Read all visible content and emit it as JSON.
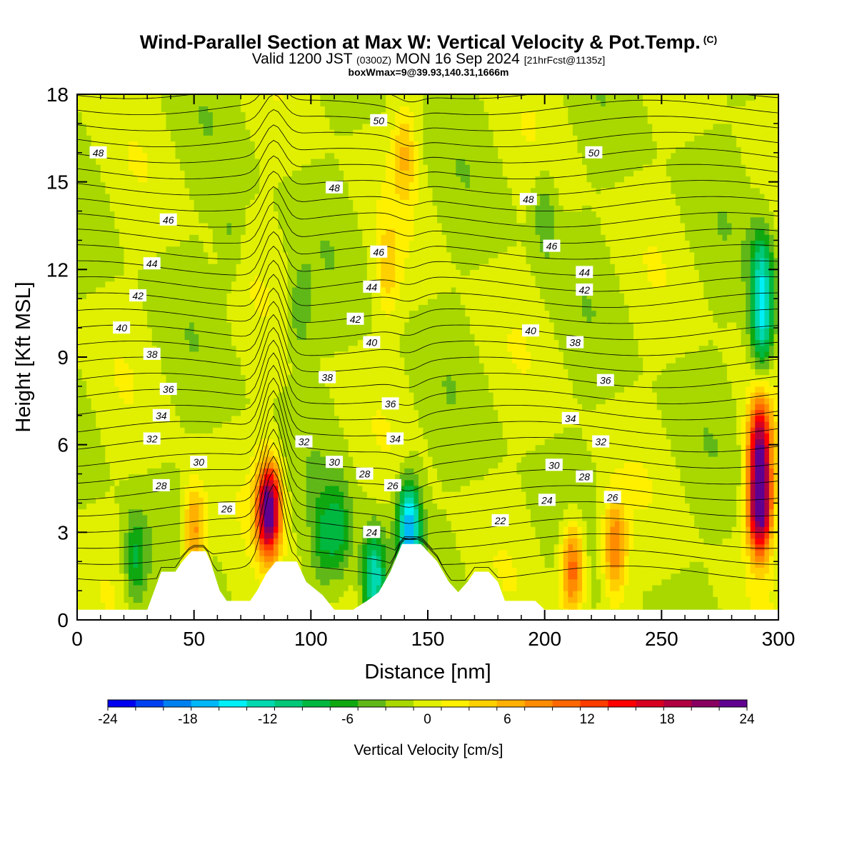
{
  "header": {
    "title": "Wind-Parallel Section at Max W: Vertical Velocity & Pot.Temp.",
    "title_tag": "(C)",
    "subtitle_main": "Valid 1200 JST",
    "subtitle_z": "(0300Z)",
    "subtitle_date": "MON 16 Sep 2024",
    "subtitle_fcst": "[21hrFcst@1135z]",
    "subtitle2": "boxWmax=9@39.93,140.31,1666m"
  },
  "chart_data": {
    "type": "heatmap",
    "xlabel": "Distance [nm]",
    "ylabel": "Height [Kft MSL]",
    "xlim": [
      0,
      300
    ],
    "ylim": [
      0,
      18
    ],
    "x_ticks": [
      0,
      50,
      100,
      150,
      200,
      250,
      300
    ],
    "y_ticks": [
      0,
      3,
      6,
      9,
      12,
      15,
      18
    ],
    "colorbar": {
      "label": "Vertical Velocity [cm/s]",
      "min": -24,
      "max": 24,
      "step": 2,
      "tick_labels": [
        -24,
        -18,
        -12,
        -6,
        0,
        6,
        12,
        18,
        24
      ],
      "colors": [
        "#0000f0",
        "#0040f0",
        "#0080f0",
        "#00b8f8",
        "#00f0f8",
        "#00d8b0",
        "#00c878",
        "#00b840",
        "#10a810",
        "#60b818",
        "#a8d800",
        "#e0f000",
        "#fff000",
        "#ffd000",
        "#ffb000",
        "#ff8c00",
        "#ff6800",
        "#ff3c00",
        "#ff0000",
        "#d80020",
        "#b00040",
        "#880060",
        "#600090"
      ]
    },
    "background_value": -1,
    "w_features": [
      {
        "x": 82,
        "z": 3.8,
        "value": 24
      },
      {
        "x": 292,
        "z": 3.8,
        "value": 24
      },
      {
        "x": 292,
        "z": 6.0,
        "value": 18
      },
      {
        "x": 293,
        "z": 10.0,
        "value": -12
      },
      {
        "x": 293,
        "z": 12.0,
        "value": -10
      },
      {
        "x": 212,
        "z": 1.8,
        "value": 12
      },
      {
        "x": 230,
        "z": 2.5,
        "value": 10
      },
      {
        "x": 142,
        "z": 3.2,
        "value": -18
      },
      {
        "x": 127,
        "z": 1.4,
        "value": -14
      },
      {
        "x": 140,
        "z": 16.0,
        "value": 5
      },
      {
        "x": 133,
        "z": 12.0,
        "value": 4
      },
      {
        "x": 50,
        "z": 3.0,
        "value": 9
      },
      {
        "x": 25,
        "z": 2.0,
        "value": -8
      },
      {
        "x": 105,
        "z": 2.8,
        "value": -6
      },
      {
        "x": 112,
        "z": 3.0,
        "value": -7
      },
      {
        "x": 95,
        "z": 10.5,
        "value": -5
      },
      {
        "x": 66,
        "z": 13.0,
        "value": -4
      },
      {
        "x": 200,
        "z": 14.0,
        "value": -5
      }
    ],
    "theta_labels": [
      {
        "text": "48",
        "x": 9,
        "z": 16.0
      },
      {
        "text": "50",
        "x": 129,
        "z": 17.1
      },
      {
        "text": "50",
        "x": 221,
        "z": 16.0
      },
      {
        "text": "48",
        "x": 110,
        "z": 14.8
      },
      {
        "text": "48",
        "x": 193,
        "z": 14.4
      },
      {
        "text": "46",
        "x": 39,
        "z": 13.7
      },
      {
        "text": "46",
        "x": 129,
        "z": 12.6
      },
      {
        "text": "46",
        "x": 203,
        "z": 12.8
      },
      {
        "text": "44",
        "x": 32,
        "z": 12.2
      },
      {
        "text": "44",
        "x": 126,
        "z": 11.4
      },
      {
        "text": "44",
        "x": 217,
        "z": 11.9
      },
      {
        "text": "42",
        "x": 26,
        "z": 11.1
      },
      {
        "text": "42",
        "x": 119,
        "z": 10.3
      },
      {
        "text": "42",
        "x": 217,
        "z": 11.3
      },
      {
        "text": "40",
        "x": 19,
        "z": 10.0
      },
      {
        "text": "40",
        "x": 126,
        "z": 9.5
      },
      {
        "text": "40",
        "x": 194,
        "z": 9.9
      },
      {
        "text": "38",
        "x": 32,
        "z": 9.1
      },
      {
        "text": "38",
        "x": 213,
        "z": 9.5
      },
      {
        "text": "38",
        "x": 107,
        "z": 8.3
      },
      {
        "text": "36",
        "x": 39,
        "z": 7.9
      },
      {
        "text": "36",
        "x": 134,
        "z": 7.4
      },
      {
        "text": "36",
        "x": 226,
        "z": 8.2
      },
      {
        "text": "34",
        "x": 36,
        "z": 7.0
      },
      {
        "text": "34",
        "x": 136,
        "z": 6.2
      },
      {
        "text": "34",
        "x": 211,
        "z": 6.9
      },
      {
        "text": "32",
        "x": 32,
        "z": 6.2
      },
      {
        "text": "32",
        "x": 97,
        "z": 6.1
      },
      {
        "text": "32",
        "x": 224,
        "z": 6.1
      },
      {
        "text": "30",
        "x": 52,
        "z": 5.4
      },
      {
        "text": "30",
        "x": 110,
        "z": 5.4
      },
      {
        "text": "30",
        "x": 204,
        "z": 5.3
      },
      {
        "text": "28",
        "x": 36,
        "z": 4.6
      },
      {
        "text": "28",
        "x": 123,
        "z": 5.0
      },
      {
        "text": "28",
        "x": 217,
        "z": 4.9
      },
      {
        "text": "26",
        "x": 64,
        "z": 3.8
      },
      {
        "text": "26",
        "x": 135,
        "z": 4.6
      },
      {
        "text": "26",
        "x": 229,
        "z": 4.2
      },
      {
        "text": "24",
        "x": 126,
        "z": 3.0
      },
      {
        "text": "24",
        "x": 201,
        "z": 4.1
      },
      {
        "text": "22",
        "x": 181,
        "z": 3.4
      }
    ],
    "terrain_height_kft": [
      [
        0,
        0.35
      ],
      [
        30,
        0.35
      ],
      [
        33,
        1.0
      ],
      [
        36,
        1.65
      ],
      [
        42,
        1.65
      ],
      [
        45,
        2.0
      ],
      [
        49,
        2.35
      ],
      [
        55,
        2.35
      ],
      [
        57,
        2.0
      ],
      [
        61,
        1.0
      ],
      [
        64,
        0.65
      ],
      [
        74,
        0.65
      ],
      [
        77,
        1.0
      ],
      [
        81,
        1.6
      ],
      [
        85,
        2.0
      ],
      [
        94,
        2.0
      ],
      [
        98,
        1.3
      ],
      [
        105,
        0.85
      ],
      [
        110,
        0.35
      ],
      [
        118,
        0.35
      ],
      [
        124,
        0.65
      ],
      [
        129,
        0.95
      ],
      [
        134,
        1.65
      ],
      [
        139,
        2.6
      ],
      [
        147,
        2.6
      ],
      [
        154,
        2.0
      ],
      [
        159,
        1.3
      ],
      [
        163,
        0.95
      ],
      [
        167,
        1.3
      ],
      [
        170,
        1.65
      ],
      [
        176,
        1.65
      ],
      [
        180,
        1.3
      ],
      [
        183,
        0.65
      ],
      [
        196,
        0.65
      ],
      [
        200,
        0.35
      ],
      [
        300,
        0.35
      ]
    ]
  }
}
